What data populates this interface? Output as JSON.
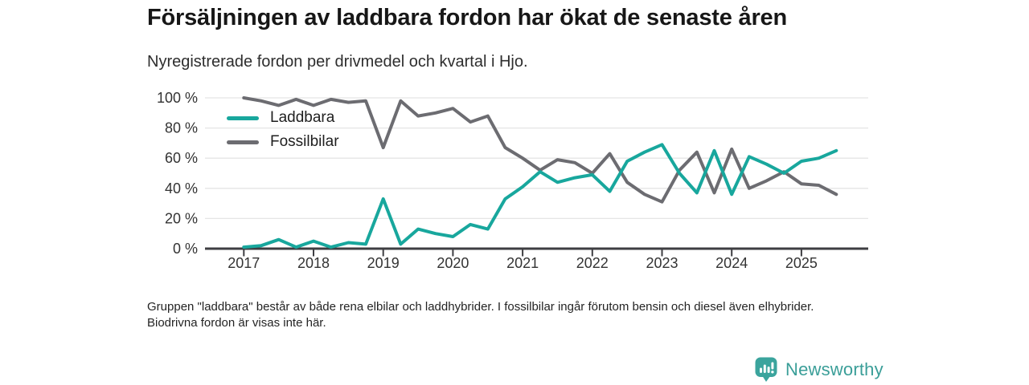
{
  "header": {
    "title": "Försäljningen av laddbara fordon har ökat de senaste åren",
    "subtitle": "Nyregistrerade fordon per drivmedel och kvartal i Hjo."
  },
  "chart_data": {
    "type": "line",
    "x": [
      "2017 Q1",
      "2017 Q2",
      "2017 Q3",
      "2017 Q4",
      "2018 Q1",
      "2018 Q2",
      "2018 Q3",
      "2018 Q4",
      "2019 Q1",
      "2019 Q2",
      "2019 Q3",
      "2019 Q4",
      "2020 Q1",
      "2020 Q2",
      "2020 Q3",
      "2020 Q4",
      "2021 Q1",
      "2021 Q2",
      "2021 Q3",
      "2021 Q4",
      "2022 Q1",
      "2022 Q2",
      "2022 Q3",
      "2022 Q4",
      "2023 Q1",
      "2023 Q2",
      "2023 Q3",
      "2023 Q4",
      "2024 Q1",
      "2024 Q2",
      "2024 Q3",
      "2024 Q4",
      "2025 Q1",
      "2025 Q2",
      "2025 Q3"
    ],
    "x_year_ticks": [
      "2017",
      "2018",
      "2019",
      "2020",
      "2021",
      "2022",
      "2023",
      "2024",
      "2025"
    ],
    "series": [
      {
        "name": "Laddbara",
        "color": "#18a79d",
        "values": [
          1,
          2,
          6,
          1,
          5,
          1,
          4,
          3,
          33,
          3,
          13,
          10,
          8,
          16,
          13,
          33,
          41,
          51,
          44,
          47,
          49,
          38,
          58,
          64,
          69,
          50,
          37,
          65,
          36,
          61,
          56,
          50,
          58,
          60,
          65
        ]
      },
      {
        "name": "Fossilbilar",
        "color": "#6c6c71",
        "values": [
          100,
          98,
          95,
          99,
          95,
          99,
          97,
          98,
          67,
          98,
          88,
          90,
          93,
          84,
          88,
          67,
          60,
          52,
          59,
          57,
          50,
          63,
          44,
          36,
          31,
          52,
          64,
          37,
          66,
          40,
          45,
          51,
          43,
          42,
          36
        ]
      }
    ],
    "ylim": [
      0,
      100
    ],
    "yticks": [
      0,
      20,
      40,
      60,
      80,
      100
    ],
    "ytick_labels": [
      "0 %",
      "20 %",
      "40 %",
      "60 %",
      "80 %",
      "100 %"
    ],
    "unit": "percent",
    "grid": "horizontal",
    "legend_position": "top-left-inside"
  },
  "footnote": "Gruppen \"laddbara\" består av både rena elbilar och laddhybrider. I fossilbilar ingår förutom bensin och diesel även elhybrider. Biodrivna fordon är visas inte här.",
  "logo": {
    "text": "Newsworthy",
    "icon": "bar-chart-pin-icon",
    "color": "#3ba49d"
  }
}
